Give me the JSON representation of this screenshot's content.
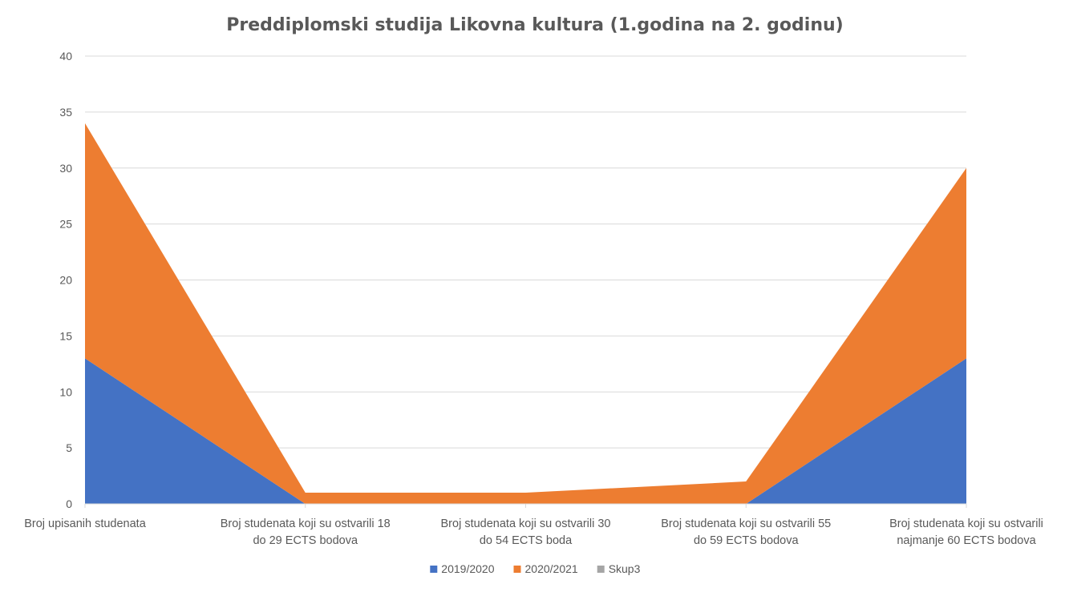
{
  "chart_data": {
    "type": "area",
    "stacked": true,
    "title": "Preddiplomski studija Likovna kultura (1.godina na 2. godinu)",
    "xlabel": "",
    "ylabel": "",
    "ylim": [
      0,
      40
    ],
    "yticks": [
      0,
      5,
      10,
      15,
      20,
      25,
      30,
      35,
      40
    ],
    "grid": true,
    "legend_position": "bottom",
    "categories": [
      [
        "Broj upisanih studenata"
      ],
      [
        "Broj studenata koji su ostvarili 18",
        "do 29 ECTS bodova"
      ],
      [
        "Broj studenata koji su ostvarili 30",
        "do 54 ECTS boda"
      ],
      [
        "Broj studenata koji su ostvarili 55",
        "do 59 ECTS bodova"
      ],
      [
        "Broj studenata koji su ostvarili",
        "najmanje 60 ECTS bodova"
      ]
    ],
    "series": [
      {
        "name": "2019/2020",
        "color": "#4472c4",
        "values": [
          13,
          0,
          0,
          0,
          13
        ]
      },
      {
        "name": "2020/2021",
        "color": "#ed7d31",
        "values": [
          21,
          1,
          1,
          2,
          17
        ]
      },
      {
        "name": "Skup3",
        "color": "#a5a5a5",
        "values": [
          0,
          0,
          0,
          0,
          0
        ]
      }
    ]
  }
}
